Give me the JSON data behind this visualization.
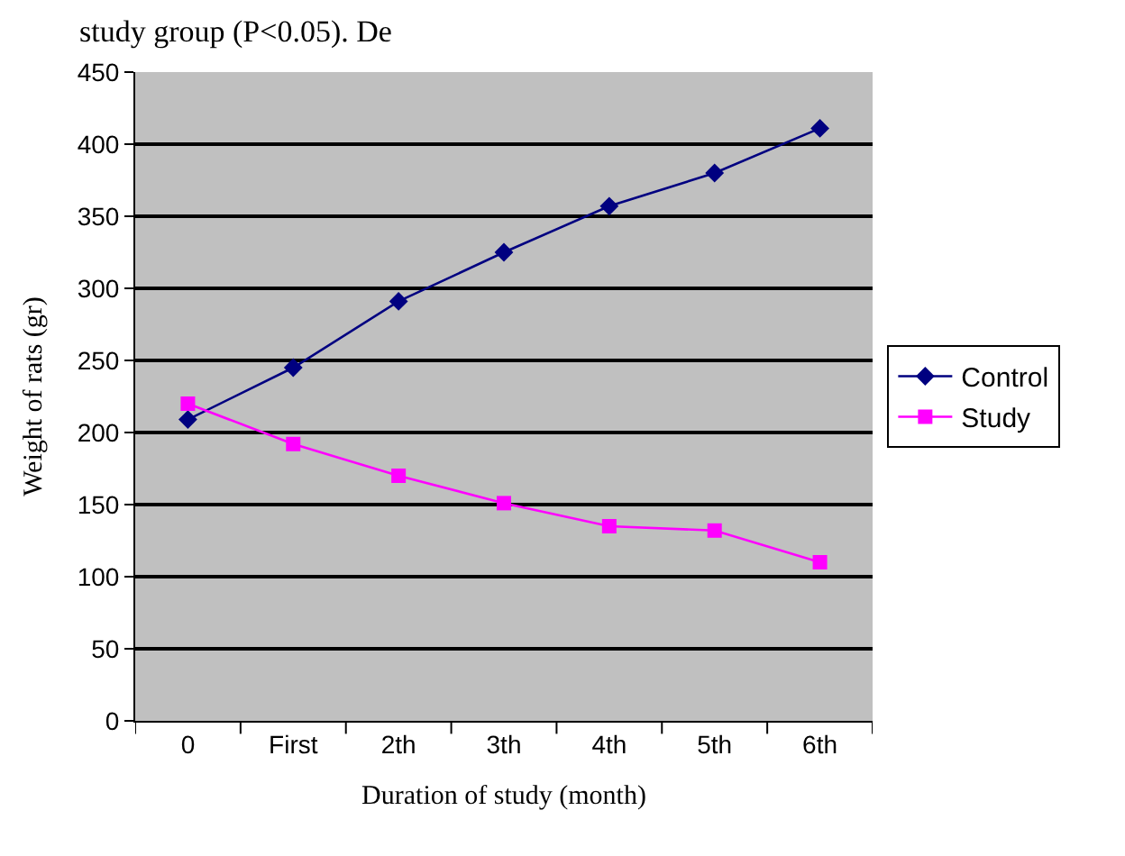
{
  "chart_data": {
    "type": "line",
    "xlabel": "Duration of study (month)",
    "ylabel": "Weight of rats (gr)",
    "categories": [
      "0",
      "First",
      "2th",
      "3th",
      "4th",
      "5th",
      "6th"
    ],
    "series": [
      {
        "name": "Control",
        "color": "#000080",
        "marker": "diamond",
        "values": [
          209,
          245,
          291,
          325,
          357,
          380,
          411
        ]
      },
      {
        "name": "Study",
        "color": "#ff00ff",
        "marker": "square",
        "values": [
          220,
          192,
          170,
          151,
          135,
          132,
          110
        ]
      }
    ],
    "ylim": [
      0,
      450
    ],
    "yticks": [
      0,
      50,
      100,
      150,
      200,
      250,
      300,
      350,
      400,
      450
    ],
    "grid": "y",
    "legend": "right",
    "annotations": [
      "study group (P<0.05). De"
    ]
  }
}
